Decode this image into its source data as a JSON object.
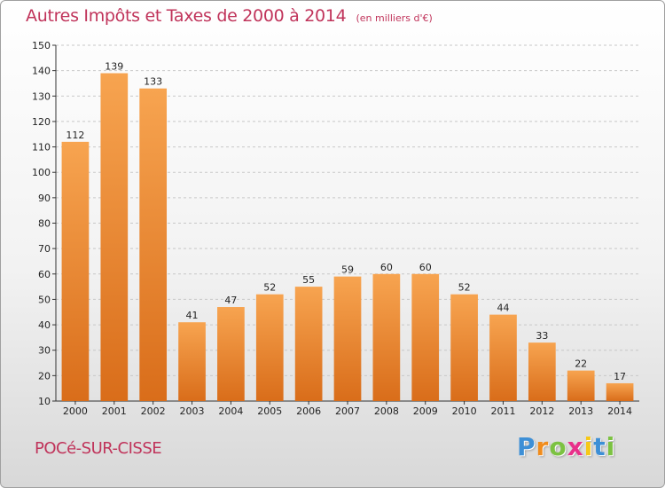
{
  "chart_data": {
    "type": "bar",
    "title": "Autres Impôts et Taxes de 2000 à 2014",
    "subtitle": "(en milliers d'€)",
    "categories": [
      "2000",
      "2001",
      "2002",
      "2003",
      "2004",
      "2005",
      "2006",
      "2007",
      "2008",
      "2009",
      "2010",
      "2011",
      "2012",
      "2013",
      "2014"
    ],
    "values": [
      112,
      139,
      133,
      41,
      47,
      52,
      55,
      59,
      60,
      60,
      52,
      44,
      33,
      22,
      17
    ],
    "ylim": [
      10,
      150
    ],
    "yticks": [
      10,
      20,
      30,
      40,
      50,
      60,
      70,
      80,
      90,
      100,
      110,
      120,
      130,
      140,
      150
    ],
    "grid": "horizontal dashed",
    "legend": "none",
    "bar_color": "#f0923a"
  },
  "footer": {
    "city": "POCé-SUR-CISSE"
  },
  "logo": {
    "letters": [
      "P",
      "r",
      "o",
      "x",
      "i",
      "t",
      "i"
    ],
    "colors": [
      "#3d8fd6",
      "#f08c1c",
      "#7cc242",
      "#e8308a",
      "#f6c817",
      "#3d8fd6",
      "#7cc242"
    ]
  }
}
